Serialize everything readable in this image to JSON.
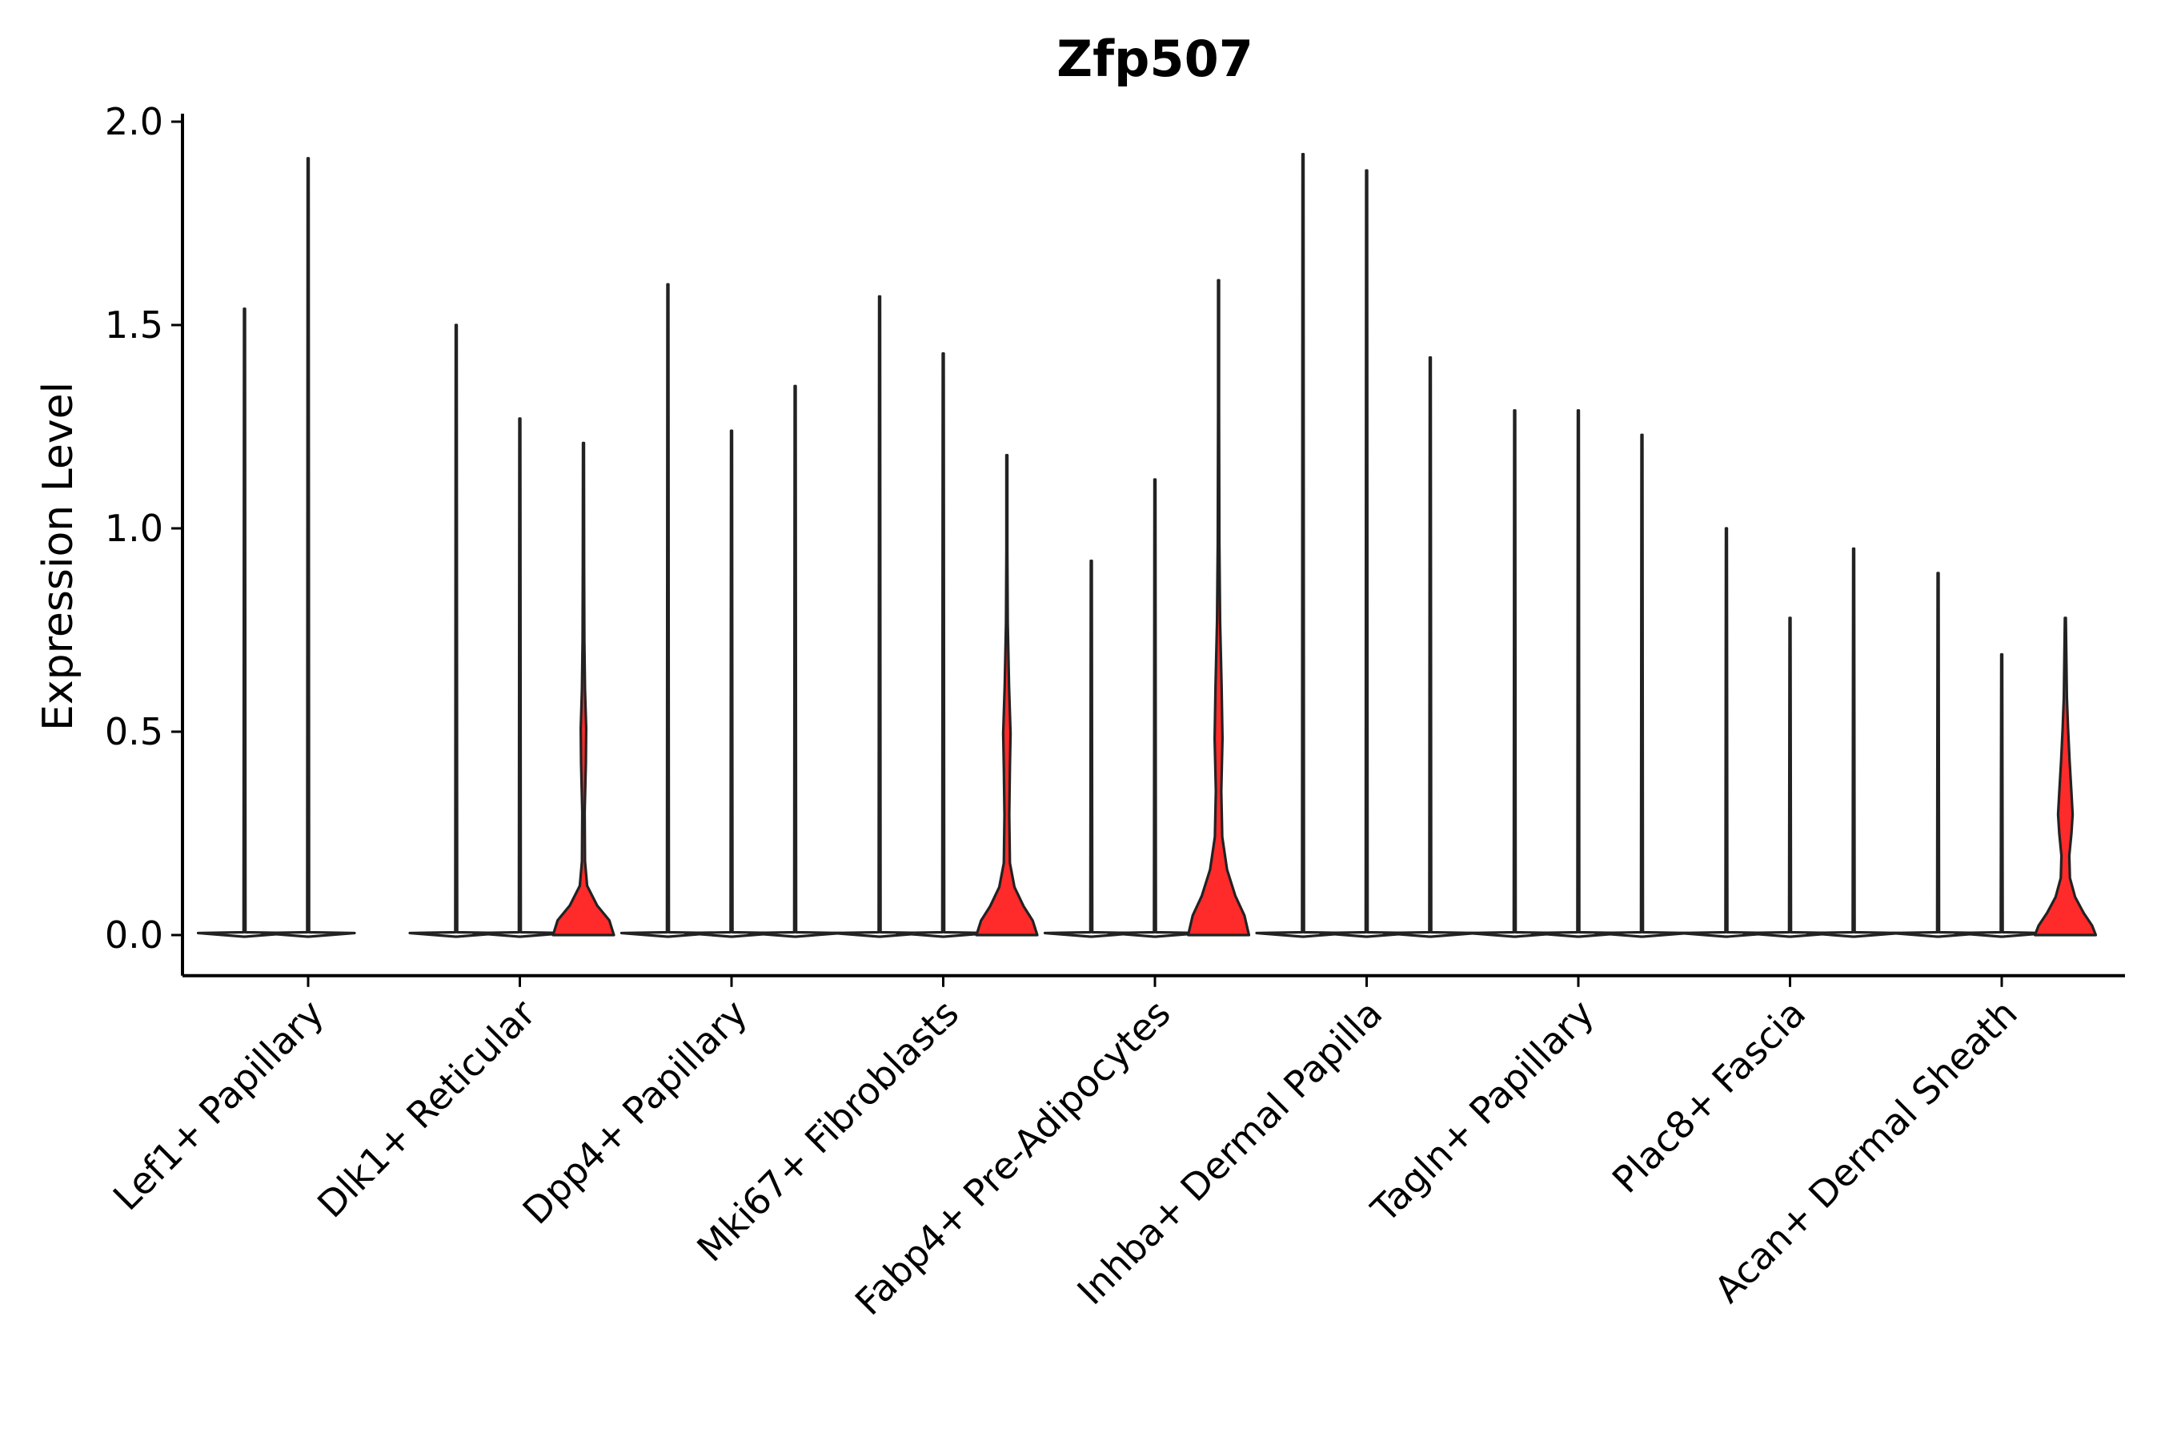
{
  "chart_data": {
    "type": "violin",
    "title": "Zfp507",
    "xlabel": "",
    "ylabel": "Expression Level",
    "ylim": [
      -0.1,
      2.0
    ],
    "yticks": [
      0.0,
      0.5,
      1.0,
      1.5,
      2.0
    ],
    "ytick_labels": [
      "0.0",
      "0.5",
      "1.0",
      "1.5",
      "2.0"
    ],
    "categories": [
      "Lef1+ Papillary",
      "Dlk1+ Reticular",
      "Dpp4+ Papillary",
      "Mki67+ Fibroblasts",
      "Fabp4+ Pre-Adipocytes",
      "Inhba+ Dermal Papilla",
      "Tagln+ Papillary",
      "Plac8+ Fascia",
      "Acan+ Dermal Sheath"
    ],
    "highlight_color": "#ff2a2a",
    "default_color": "#ffffff",
    "violins": [
      {
        "category": "Lef1+ Papillary",
        "offset": -1,
        "max": 1.54,
        "highlight": false,
        "shape": []
      },
      {
        "category": "Lef1+ Papillary",
        "offset": 0,
        "max": 1.91,
        "highlight": false,
        "shape": []
      },
      {
        "category": "Dlk1+ Reticular",
        "offset": -1,
        "max": 1.5,
        "highlight": false,
        "shape": []
      },
      {
        "category": "Dlk1+ Reticular",
        "offset": 0,
        "max": 1.27,
        "highlight": false,
        "shape": []
      },
      {
        "category": "Dlk1+ Reticular",
        "offset": 1,
        "max": 1.21,
        "highlight": true,
        "shape": [
          [
            0,
            1.0
          ],
          [
            0.03,
            0.85
          ],
          [
            0.06,
            0.45
          ],
          [
            0.1,
            0.12
          ],
          [
            0.15,
            0.05
          ],
          [
            0.25,
            0.04
          ],
          [
            0.35,
            0.08
          ],
          [
            0.42,
            0.09
          ],
          [
            0.5,
            0.05
          ],
          [
            0.6,
            0.03
          ],
          [
            0.75,
            0.02
          ],
          [
            1.0,
            0.0
          ]
        ]
      },
      {
        "category": "Dpp4+ Papillary",
        "offset": -1,
        "max": 1.6,
        "highlight": false,
        "shape": []
      },
      {
        "category": "Dpp4+ Papillary",
        "offset": 0,
        "max": 1.24,
        "highlight": false,
        "shape": []
      },
      {
        "category": "Dpp4+ Papillary",
        "offset": 1,
        "max": 1.35,
        "highlight": false,
        "shape": []
      },
      {
        "category": "Mki67+ Fibroblasts",
        "offset": -1,
        "max": 1.57,
        "highlight": false,
        "shape": []
      },
      {
        "category": "Mki67+ Fibroblasts",
        "offset": 0,
        "max": 1.43,
        "highlight": false,
        "shape": []
      },
      {
        "category": "Mki67+ Fibroblasts",
        "offset": 1,
        "max": 1.18,
        "highlight": true,
        "shape": [
          [
            0,
            1.0
          ],
          [
            0.03,
            0.85
          ],
          [
            0.06,
            0.55
          ],
          [
            0.1,
            0.25
          ],
          [
            0.15,
            0.1
          ],
          [
            0.25,
            0.08
          ],
          [
            0.35,
            0.1
          ],
          [
            0.42,
            0.12
          ],
          [
            0.52,
            0.07
          ],
          [
            0.65,
            0.03
          ],
          [
            0.8,
            0.015
          ],
          [
            1.0,
            0.0
          ]
        ]
      },
      {
        "category": "Fabp4+ Pre-Adipocytes",
        "offset": -1,
        "max": 0.92,
        "highlight": false,
        "shape": []
      },
      {
        "category": "Fabp4+ Pre-Adipocytes",
        "offset": 0,
        "max": 1.12,
        "highlight": false,
        "shape": []
      },
      {
        "category": "Fabp4+ Pre-Adipocytes",
        "offset": 1,
        "max": 1.61,
        "highlight": true,
        "shape": [
          [
            0,
            1.0
          ],
          [
            0.03,
            0.85
          ],
          [
            0.06,
            0.55
          ],
          [
            0.1,
            0.28
          ],
          [
            0.15,
            0.12
          ],
          [
            0.22,
            0.09
          ],
          [
            0.3,
            0.13
          ],
          [
            0.38,
            0.1
          ],
          [
            0.48,
            0.05
          ],
          [
            0.6,
            0.025
          ],
          [
            0.8,
            0.01
          ],
          [
            1.0,
            0.0
          ]
        ]
      },
      {
        "category": "Inhba+ Dermal Papilla",
        "offset": -1,
        "max": 1.92,
        "highlight": false,
        "shape": []
      },
      {
        "category": "Inhba+ Dermal Papilla",
        "offset": 0,
        "max": 1.88,
        "highlight": false,
        "shape": []
      },
      {
        "category": "Inhba+ Dermal Papilla",
        "offset": 1,
        "max": 1.42,
        "highlight": false,
        "shape": []
      },
      {
        "category": "Tagln+ Papillary",
        "offset": -1,
        "max": 1.29,
        "highlight": false,
        "shape": []
      },
      {
        "category": "Tagln+ Papillary",
        "offset": 0,
        "max": 1.29,
        "highlight": false,
        "shape": []
      },
      {
        "category": "Tagln+ Papillary",
        "offset": 1,
        "max": 1.23,
        "highlight": false,
        "shape": []
      },
      {
        "category": "Plac8+ Fascia",
        "offset": -1,
        "max": 1.0,
        "highlight": false,
        "shape": []
      },
      {
        "category": "Plac8+ Fascia",
        "offset": 0,
        "max": 0.78,
        "highlight": false,
        "shape": []
      },
      {
        "category": "Plac8+ Fascia",
        "offset": 1,
        "max": 0.95,
        "highlight": false,
        "shape": []
      },
      {
        "category": "Acan+ Dermal Sheath",
        "offset": -1,
        "max": 0.89,
        "highlight": false,
        "shape": []
      },
      {
        "category": "Acan+ Dermal Sheath",
        "offset": 0,
        "max": 0.69,
        "highlight": false,
        "shape": []
      },
      {
        "category": "Acan+ Dermal Sheath",
        "offset": 1,
        "max": 0.78,
        "highlight": true,
        "shape": [
          [
            0,
            1.0
          ],
          [
            0.03,
            0.88
          ],
          [
            0.07,
            0.6
          ],
          [
            0.12,
            0.32
          ],
          [
            0.18,
            0.15
          ],
          [
            0.25,
            0.13
          ],
          [
            0.32,
            0.2
          ],
          [
            0.38,
            0.24
          ],
          [
            0.45,
            0.2
          ],
          [
            0.55,
            0.14
          ],
          [
            0.65,
            0.09
          ],
          [
            0.75,
            0.05
          ],
          [
            1.0,
            0.0
          ]
        ]
      }
    ]
  }
}
